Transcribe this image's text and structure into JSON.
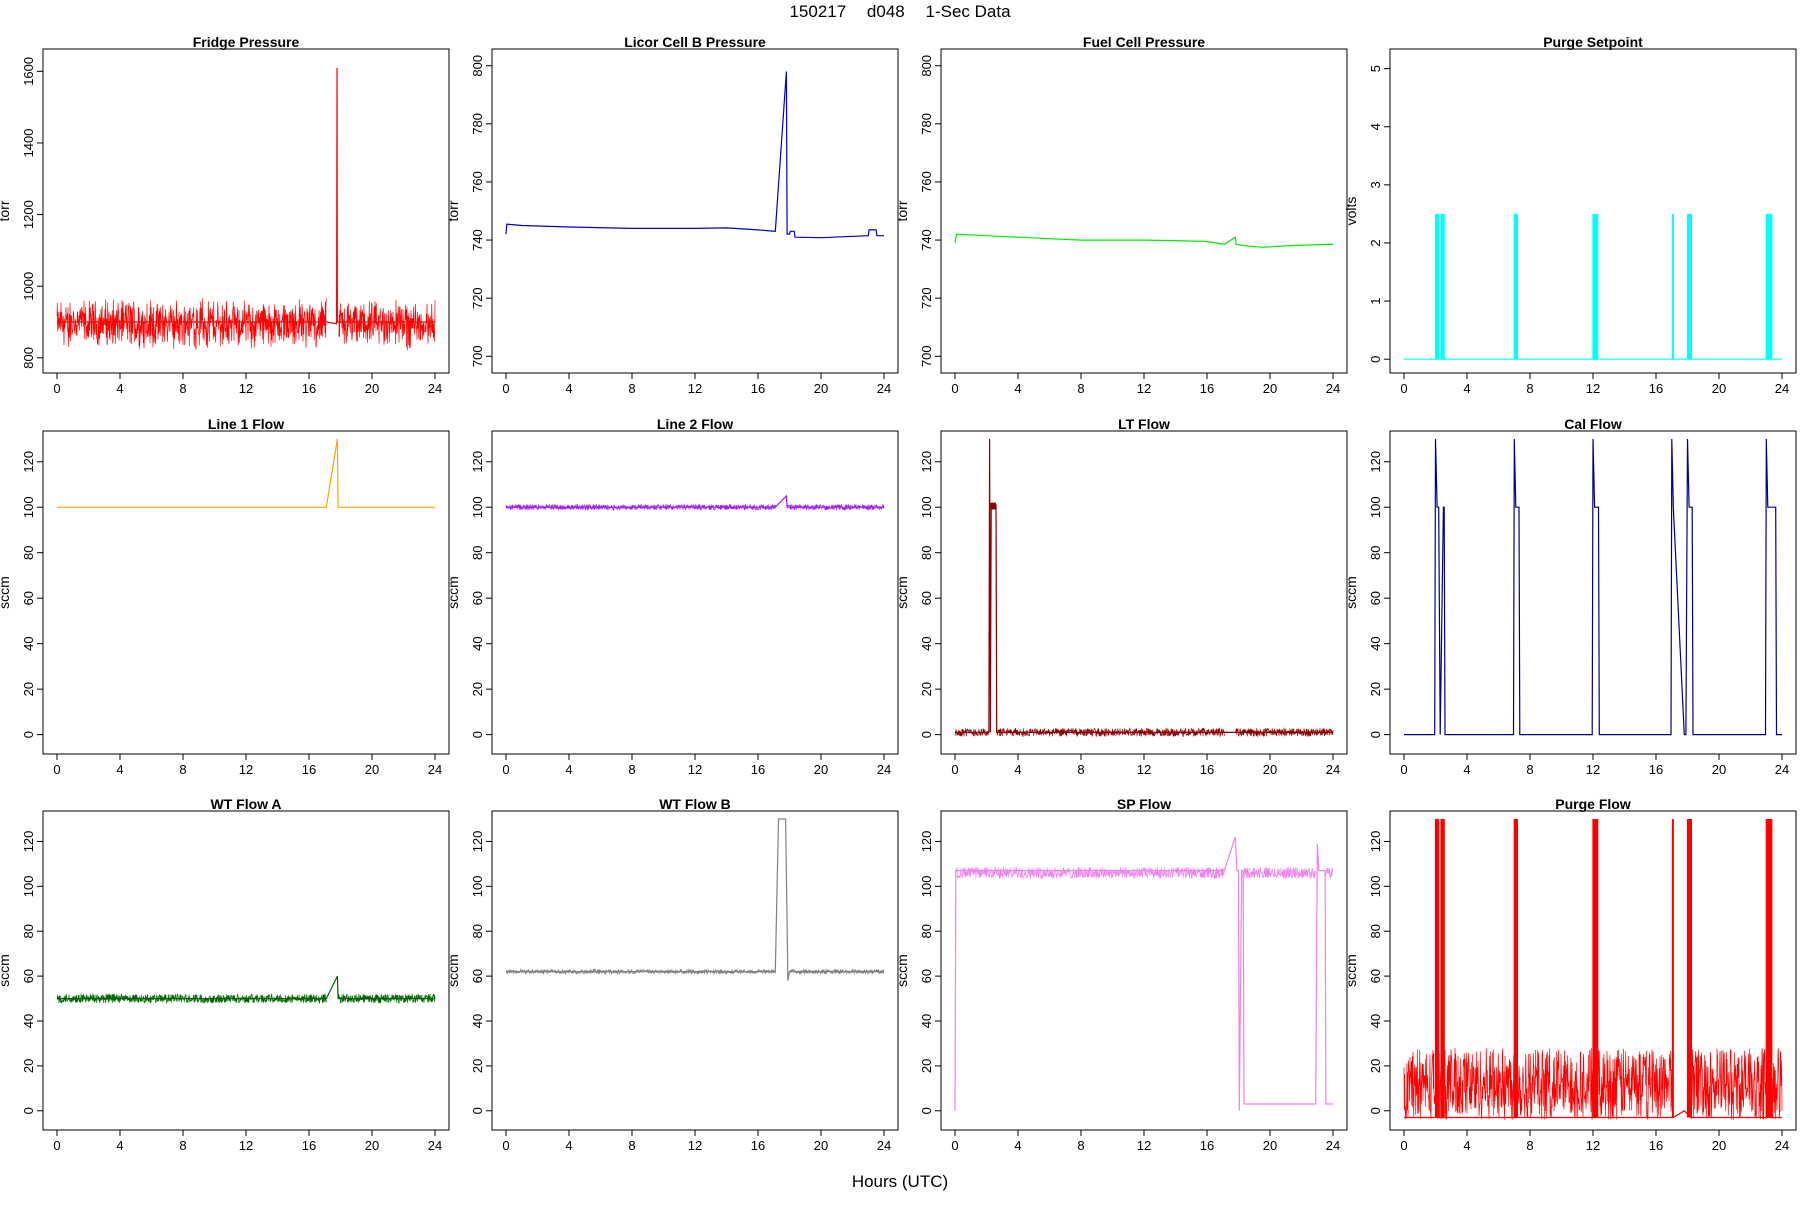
{
  "figure": {
    "title_parts": [
      "150217",
      "d048",
      "1-Sec Data"
    ],
    "xlabel": "Hours (UTC)"
  },
  "chart_data": [
    {
      "type": "line",
      "title": "Fridge Pressure",
      "ylabel": "torr",
      "color": "#ff0000",
      "xlim": [
        0,
        24
      ],
      "ylim": [
        780,
        1640
      ],
      "yticks": [
        800,
        1000,
        1200,
        1400,
        1600
      ],
      "xticks": [
        0,
        4,
        8,
        12,
        16,
        20,
        24
      ],
      "noise": {
        "band": [
          845,
          945
        ],
        "amp": [
          20,
          28
        ]
      },
      "x": [
        0,
        17.1,
        17.1,
        17.75,
        17.78,
        17.8,
        17.9,
        24
      ],
      "y": [
        900,
        900,
        900,
        895,
        1610,
        900,
        900,
        900
      ],
      "segments": [
        [
          0,
          17.1
        ],
        [
          17.9,
          24
        ]
      ]
    },
    {
      "type": "line",
      "title": "Licor Cell B Pressure",
      "ylabel": "torr",
      "color": "#0000cd",
      "xlim": [
        0,
        24
      ],
      "ylim": [
        697,
        803
      ],
      "yticks": [
        700,
        720,
        740,
        760,
        780,
        800
      ],
      "xticks": [
        0,
        4,
        8,
        12,
        16,
        20,
        24
      ],
      "x": [
        0,
        0.05,
        1,
        4,
        8,
        12,
        14,
        16,
        17.1,
        17.8,
        17.85,
        18,
        18.05,
        18.3,
        18.35,
        20,
        23,
        23.05,
        23.5,
        23.55,
        24
      ],
      "y": [
        742,
        745.5,
        745,
        744.5,
        744,
        744,
        744.2,
        743.5,
        743,
        798,
        742,
        742,
        743,
        743,
        741,
        740.8,
        741.5,
        743.5,
        743.5,
        741.5,
        741.5
      ]
    },
    {
      "type": "line",
      "title": "Fuel Cell Pressure",
      "ylabel": "torr",
      "color": "#00ee00",
      "xlim": [
        0,
        24
      ],
      "ylim": [
        697,
        803
      ],
      "yticks": [
        700,
        720,
        740,
        760,
        780,
        800
      ],
      "xticks": [
        0,
        4,
        8,
        12,
        16,
        20,
        24
      ],
      "x": [
        0,
        0.1,
        2,
        4,
        8,
        12,
        14,
        16,
        17.1,
        17.8,
        17.85,
        18.5,
        19.5,
        21,
        23.5,
        24
      ],
      "y": [
        739,
        742,
        741.5,
        741,
        740,
        740,
        739.8,
        739.5,
        738.5,
        741,
        738.5,
        738,
        737.5,
        738,
        738.5,
        738.5
      ]
    },
    {
      "type": "line",
      "title": "Purge Setpoint",
      "ylabel": "volts",
      "color": "#00ffff",
      "xlim": [
        0,
        24
      ],
      "ylim": [
        -0.1,
        5.2
      ],
      "yticks": [
        0,
        1,
        2,
        3,
        4,
        5
      ],
      "xticks": [
        0,
        4,
        8,
        12,
        16,
        20,
        24
      ],
      "pulses": [
        [
          2.0,
          2.2
        ],
        [
          2.35,
          2.55
        ],
        [
          7.0,
          7.2
        ],
        [
          12.0,
          12.3
        ],
        [
          17.05,
          17.1
        ],
        [
          18.0,
          18.25
        ],
        [
          23.0,
          23.35
        ]
      ],
      "base": 0,
      "high": 2.5,
      "x": [
        0,
        24
      ],
      "y": [
        0,
        0
      ]
    },
    {
      "type": "line",
      "title": "Line 1 Flow",
      "ylabel": "sccm",
      "color": "#ffa500",
      "xlim": [
        0,
        24
      ],
      "ylim": [
        -5,
        130
      ],
      "yticks": [
        0,
        20,
        40,
        60,
        80,
        100,
        120
      ],
      "xticks": [
        0,
        4,
        8,
        12,
        16,
        20,
        24
      ],
      "x": [
        0,
        17.1,
        17.8,
        17.85,
        24
      ],
      "y": [
        100,
        100,
        130,
        100,
        100
      ]
    },
    {
      "type": "line",
      "title": "Line 2 Flow",
      "ylabel": "sccm",
      "color": "#a020f0",
      "xlim": [
        0,
        24
      ],
      "ylim": [
        -5,
        130
      ],
      "yticks": [
        0,
        20,
        40,
        60,
        80,
        100,
        120
      ],
      "xticks": [
        0,
        4,
        8,
        12,
        16,
        20,
        24
      ],
      "noise": {
        "band": [
          100,
          100
        ],
        "amp": [
          1.2,
          1.2
        ]
      },
      "x": [
        0,
        17.1,
        17.8,
        17.85,
        24
      ],
      "y": [
        100,
        100,
        105,
        100,
        100
      ],
      "segments": [
        [
          0,
          17.1
        ],
        [
          17.85,
          24
        ]
      ]
    },
    {
      "type": "line",
      "title": "LT Flow",
      "ylabel": "sccm",
      "color": "#8b0000",
      "xlim": [
        0,
        24
      ],
      "ylim": [
        -5,
        130
      ],
      "yticks": [
        0,
        20,
        40,
        60,
        80,
        100,
        120
      ],
      "xticks": [
        0,
        4,
        8,
        12,
        16,
        20,
        24
      ],
      "noise": {
        "band": [
          1,
          1
        ],
        "amp": [
          1.8,
          1.8
        ]
      },
      "x": [
        0,
        2.15,
        2.2,
        2.25,
        2.3,
        2.6,
        2.65,
        17.1,
        17.8,
        24
      ],
      "y": [
        1,
        1,
        130,
        1,
        101,
        101,
        1,
        1,
        1,
        1
      ],
      "segments": [
        [
          0,
          2.15
        ],
        [
          2.65,
          17.1
        ],
        [
          17.8,
          24
        ]
      ],
      "blocks": [
        [
          2.25,
          2.6,
          99,
          102
        ]
      ]
    },
    {
      "type": "line",
      "title": "Cal Flow",
      "ylabel": "sccm",
      "color": "#00008b",
      "xlim": [
        0,
        24
      ],
      "ylim": [
        -5,
        130
      ],
      "yticks": [
        0,
        20,
        40,
        60,
        80,
        100,
        120
      ],
      "xticks": [
        0,
        4,
        8,
        12,
        16,
        20,
        24
      ],
      "x": [
        0,
        1.95,
        2.0,
        2.1,
        2.2,
        2.3,
        2.5,
        2.55,
        2.6,
        6.95,
        7.0,
        7.1,
        7.3,
        7.35,
        11.95,
        12.0,
        12.1,
        12.35,
        12.4,
        16.95,
        17.0,
        17.1,
        17.8,
        17.85,
        17.9,
        18.0,
        18.1,
        18.3,
        18.35,
        22.95,
        23.0,
        23.1,
        23.6,
        23.65,
        24
      ],
      "y": [
        0,
        0,
        130,
        100,
        100,
        0,
        100,
        100,
        0,
        0,
        130,
        100,
        100,
        0,
        0,
        130,
        100,
        100,
        0,
        0,
        130,
        100,
        0,
        0,
        0,
        130,
        100,
        100,
        0,
        0,
        130,
        100,
        100,
        0,
        0
      ]
    },
    {
      "type": "line",
      "title": "WT Flow A",
      "ylabel": "sccm",
      "color": "#006400",
      "xlim": [
        0,
        24
      ],
      "ylim": [
        -5,
        130
      ],
      "yticks": [
        0,
        20,
        40,
        60,
        80,
        100,
        120
      ],
      "xticks": [
        0,
        4,
        8,
        12,
        16,
        20,
        24
      ],
      "noise": {
        "band": [
          50,
          50
        ],
        "amp": [
          2,
          2
        ]
      },
      "x": [
        0,
        17.1,
        17.8,
        17.85,
        24
      ],
      "y": [
        50,
        50,
        60,
        50,
        50
      ],
      "segments": [
        [
          0,
          17.1
        ],
        [
          17.85,
          24
        ]
      ]
    },
    {
      "type": "line",
      "title": "WT Flow B",
      "ylabel": "sccm",
      "color": "#808080",
      "xlim": [
        0,
        24
      ],
      "ylim": [
        -5,
        130
      ],
      "yticks": [
        0,
        20,
        40,
        60,
        80,
        100,
        120
      ],
      "xticks": [
        0,
        4,
        8,
        12,
        16,
        20,
        24
      ],
      "noise": {
        "band": [
          62,
          62
        ],
        "amp": [
          0.8,
          1.2
        ]
      },
      "x": [
        0,
        17.1,
        17.3,
        17.5,
        17.75,
        17.9,
        18,
        24
      ],
      "y": [
        62,
        62,
        130,
        130,
        130,
        58,
        62,
        62
      ],
      "segments": [
        [
          0,
          17.1
        ],
        [
          18,
          24
        ]
      ]
    },
    {
      "type": "line",
      "title": "SP Flow",
      "ylabel": "sccm",
      "color": "#ee82ee",
      "xlim": [
        0,
        24
      ],
      "ylim": [
        -5,
        130
      ],
      "yticks": [
        0,
        20,
        40,
        60,
        80,
        100,
        120
      ],
      "xticks": [
        0,
        4,
        8,
        12,
        16,
        20,
        24
      ],
      "noise": {
        "band": [
          106,
          106
        ],
        "amp": [
          2.5,
          2.5
        ]
      },
      "x": [
        0,
        0.05,
        0.1,
        17.1,
        17.8,
        17.9,
        18.0,
        18.05,
        18.2,
        18.3,
        18.35,
        22.9,
        23.0,
        23.1,
        23.5,
        23.55,
        24
      ],
      "y": [
        0,
        107,
        107,
        107,
        122,
        107,
        107,
        0,
        107,
        107,
        3,
        3,
        119,
        107,
        107,
        3,
        3
      ],
      "segments": [
        [
          0.1,
          17.1
        ],
        [
          18.35,
          22.9
        ],
        [
          23.55,
          24
        ]
      ]
    },
    {
      "type": "line",
      "title": "Purge Flow",
      "ylabel": "sccm",
      "color": "#ff0000",
      "xlim": [
        0,
        24
      ],
      "ylim": [
        -5,
        130
      ],
      "yticks": [
        0,
        20,
        40,
        60,
        80,
        100,
        120
      ],
      "xticks": [
        0,
        4,
        8,
        12,
        16,
        20,
        24
      ],
      "noise": {
        "band": [
          12,
          12
        ],
        "amp": [
          16,
          16
        ]
      },
      "x": [
        0,
        17.1,
        17.8,
        18.2,
        24
      ],
      "y": [
        -3,
        -3,
        0,
        -3,
        -3
      ],
      "segments": [
        [
          0,
          17.1
        ],
        [
          18.2,
          24
        ]
      ],
      "pulses": [
        [
          2.0,
          2.2
        ],
        [
          2.35,
          2.55
        ],
        [
          7.0,
          7.2
        ],
        [
          12.0,
          12.3
        ],
        [
          17.05,
          17.1
        ],
        [
          18.0,
          18.25
        ],
        [
          23.0,
          23.35
        ]
      ]
    }
  ]
}
